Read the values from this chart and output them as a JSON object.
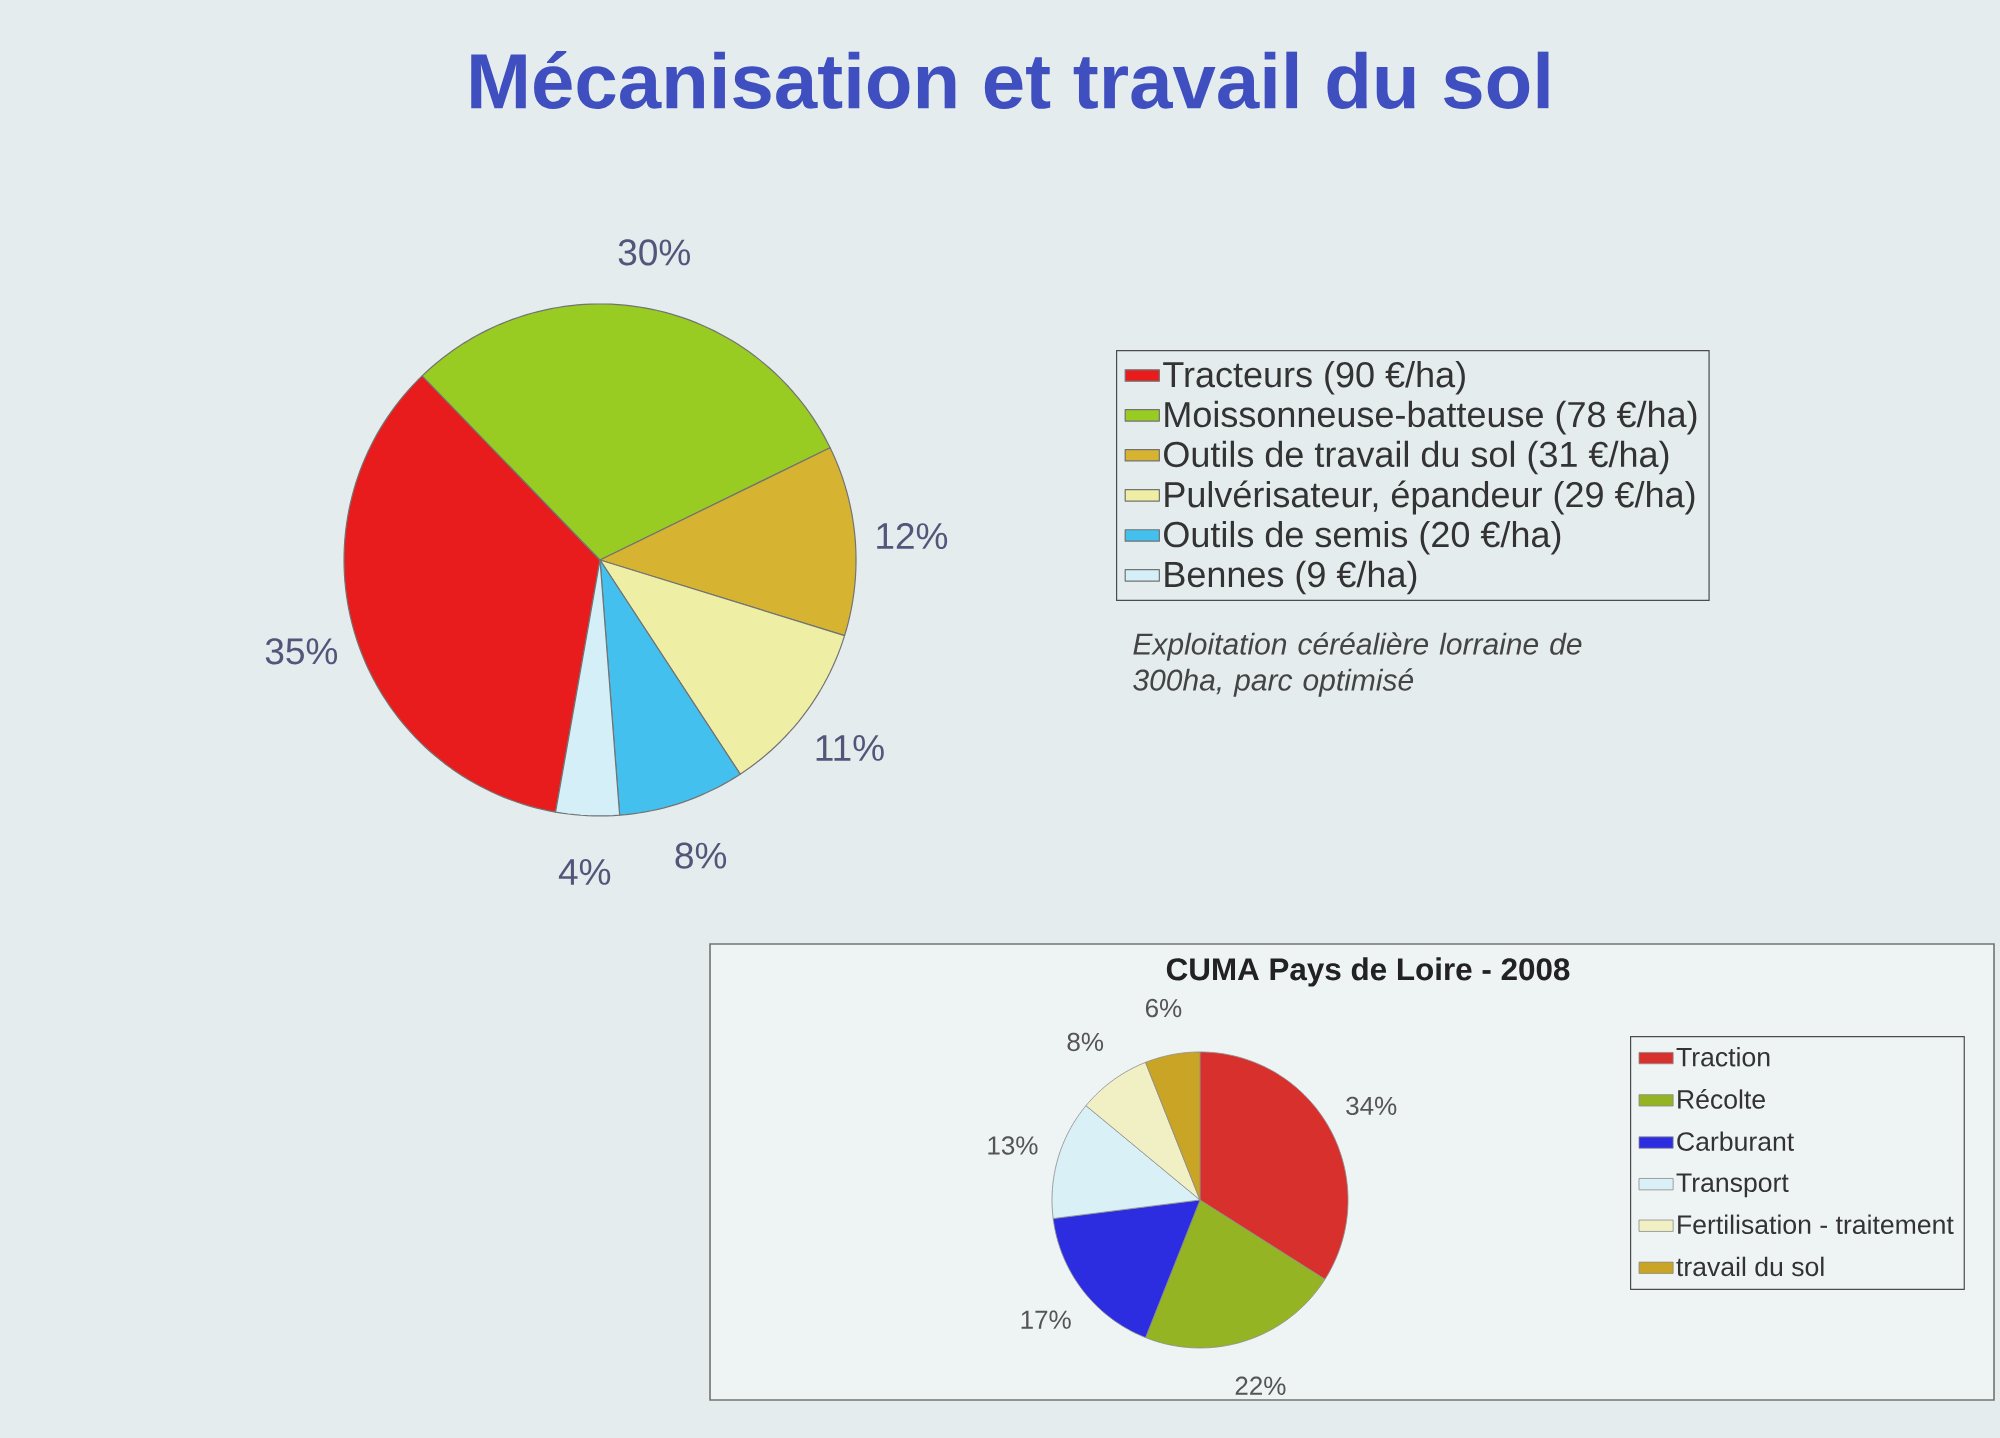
{
  "chart_data": [
    {
      "type": "pie",
      "title": "Mécanisation et travail du sol",
      "categories": [
        "Tracteurs (90 €/ha)",
        "Moissonneuse-batteuse (78 €/ha)",
        "Outils de travail du sol (31 €/ha)",
        "Pulvérisateur, épandeur (29 €/ha)",
        "Outils de semis (20 €/ha)",
        "Bennes (9 €/ha)"
      ],
      "values": [
        35,
        30,
        12,
        11,
        8,
        4
      ],
      "value_labels": [
        "35%",
        "30%",
        "12%",
        "11%",
        "8%",
        "4%"
      ],
      "colors": [
        "#e81c1c",
        "#99cc22",
        "#d6b432",
        "#eeeea4",
        "#44c0ee",
        "#d4eff8"
      ],
      "legend": "right",
      "annotations": [
        "Exploitation céréalière lorraine de 300ha, parc optimisé"
      ]
    },
    {
      "type": "pie",
      "title": "CUMA Pays de Loire - 2008",
      "categories": [
        "Traction",
        "Récolte",
        "Carburant",
        "Transport",
        "Fertilisation - traitement",
        "travail du sol"
      ],
      "values": [
        34,
        22,
        17,
        13,
        8,
        6
      ],
      "value_labels": [
        "34%",
        "22%",
        "17%",
        "13%",
        "8%",
        "6%"
      ],
      "colors": [
        "#d8302c",
        "#94b424",
        "#2c2ce0",
        "#d8f0f6",
        "#f0f0c4",
        "#caa424"
      ],
      "legend": "right"
    }
  ]
}
